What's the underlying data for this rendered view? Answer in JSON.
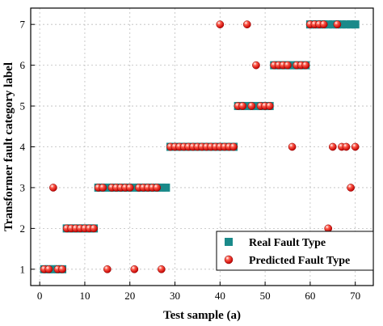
{
  "chart_data": {
    "type": "scatter",
    "xlabel": "Test sample (a)",
    "ylabel": "Transformer fault category label",
    "xlim": [
      -2,
      74
    ],
    "ylim": [
      0.6,
      7.4
    ],
    "x_ticks": [
      0,
      10,
      20,
      30,
      40,
      50,
      60,
      70
    ],
    "y_ticks": [
      1,
      2,
      3,
      4,
      5,
      6,
      7
    ],
    "grid": true,
    "legend_position": "bottom-right",
    "series": [
      {
        "name": "Real Fault Type",
        "marker": "square",
        "color": "#1a8a8a",
        "points": [
          [
            1,
            1
          ],
          [
            2,
            1
          ],
          [
            3,
            1
          ],
          [
            4,
            1
          ],
          [
            5,
            1
          ],
          [
            6,
            2
          ],
          [
            7,
            2
          ],
          [
            8,
            2
          ],
          [
            9,
            2
          ],
          [
            10,
            2
          ],
          [
            11,
            2
          ],
          [
            12,
            2
          ],
          [
            13,
            3
          ],
          [
            14,
            3
          ],
          [
            15,
            3
          ],
          [
            16,
            3
          ],
          [
            17,
            3
          ],
          [
            18,
            3
          ],
          [
            19,
            3
          ],
          [
            20,
            3
          ],
          [
            21,
            3
          ],
          [
            22,
            3
          ],
          [
            23,
            3
          ],
          [
            24,
            3
          ],
          [
            25,
            3
          ],
          [
            26,
            3
          ],
          [
            27,
            3
          ],
          [
            28,
            3
          ],
          [
            29,
            4
          ],
          [
            30,
            4
          ],
          [
            31,
            4
          ],
          [
            32,
            4
          ],
          [
            33,
            4
          ],
          [
            34,
            4
          ],
          [
            35,
            4
          ],
          [
            36,
            4
          ],
          [
            37,
            4
          ],
          [
            38,
            4
          ],
          [
            39,
            4
          ],
          [
            40,
            4
          ],
          [
            41,
            4
          ],
          [
            42,
            4
          ],
          [
            43,
            4
          ],
          [
            44,
            5
          ],
          [
            45,
            5
          ],
          [
            46,
            5
          ],
          [
            47,
            5
          ],
          [
            48,
            5
          ],
          [
            49,
            5
          ],
          [
            50,
            5
          ],
          [
            51,
            5
          ],
          [
            52,
            6
          ],
          [
            53,
            6
          ],
          [
            54,
            6
          ],
          [
            55,
            6
          ],
          [
            56,
            6
          ],
          [
            57,
            6
          ],
          [
            58,
            6
          ],
          [
            59,
            6
          ],
          [
            60,
            7
          ],
          [
            61,
            7
          ],
          [
            62,
            7
          ],
          [
            63,
            7
          ],
          [
            64,
            7
          ],
          [
            65,
            7
          ],
          [
            66,
            7
          ],
          [
            67,
            7
          ],
          [
            68,
            7
          ],
          [
            69,
            7
          ],
          [
            70,
            7
          ]
        ]
      },
      {
        "name": "Predicted Fault Type",
        "marker": "circle",
        "color": "#e01010",
        "points": [
          [
            1,
            1
          ],
          [
            2,
            1
          ],
          [
            4,
            1
          ],
          [
            5,
            1
          ],
          [
            3,
            3
          ],
          [
            6,
            2
          ],
          [
            7,
            2
          ],
          [
            8,
            2
          ],
          [
            9,
            2
          ],
          [
            10,
            2
          ],
          [
            11,
            2
          ],
          [
            12,
            2
          ],
          [
            15,
            1
          ],
          [
            21,
            1
          ],
          [
            27,
            1
          ],
          [
            13,
            3
          ],
          [
            14,
            3
          ],
          [
            16,
            3
          ],
          [
            17,
            3
          ],
          [
            18,
            3
          ],
          [
            19,
            3
          ],
          [
            20,
            3
          ],
          [
            22,
            3
          ],
          [
            23,
            3
          ],
          [
            24,
            3
          ],
          [
            25,
            3
          ],
          [
            26,
            3
          ],
          [
            29,
            4
          ],
          [
            30,
            4
          ],
          [
            31,
            4
          ],
          [
            32,
            4
          ],
          [
            33,
            4
          ],
          [
            34,
            4
          ],
          [
            35,
            4
          ],
          [
            36,
            4
          ],
          [
            37,
            4
          ],
          [
            38,
            4
          ],
          [
            39,
            4
          ],
          [
            40,
            4
          ],
          [
            41,
            4
          ],
          [
            42,
            4
          ],
          [
            43,
            4
          ],
          [
            40,
            7
          ],
          [
            46,
            7
          ],
          [
            48,
            6
          ],
          [
            44,
            5
          ],
          [
            45,
            5
          ],
          [
            47,
            5
          ],
          [
            49,
            5
          ],
          [
            50,
            5
          ],
          [
            51,
            5
          ],
          [
            52,
            6
          ],
          [
            53,
            6
          ],
          [
            54,
            6
          ],
          [
            55,
            6
          ],
          [
            57,
            6
          ],
          [
            58,
            6
          ],
          [
            59,
            6
          ],
          [
            56,
            4
          ],
          [
            60,
            7
          ],
          [
            61,
            7
          ],
          [
            62,
            7
          ],
          [
            63,
            7
          ],
          [
            66,
            7
          ],
          [
            64,
            2
          ],
          [
            65,
            4
          ],
          [
            67,
            4
          ],
          [
            68,
            4
          ],
          [
            69,
            3
          ],
          [
            70,
            4
          ]
        ]
      }
    ]
  }
}
